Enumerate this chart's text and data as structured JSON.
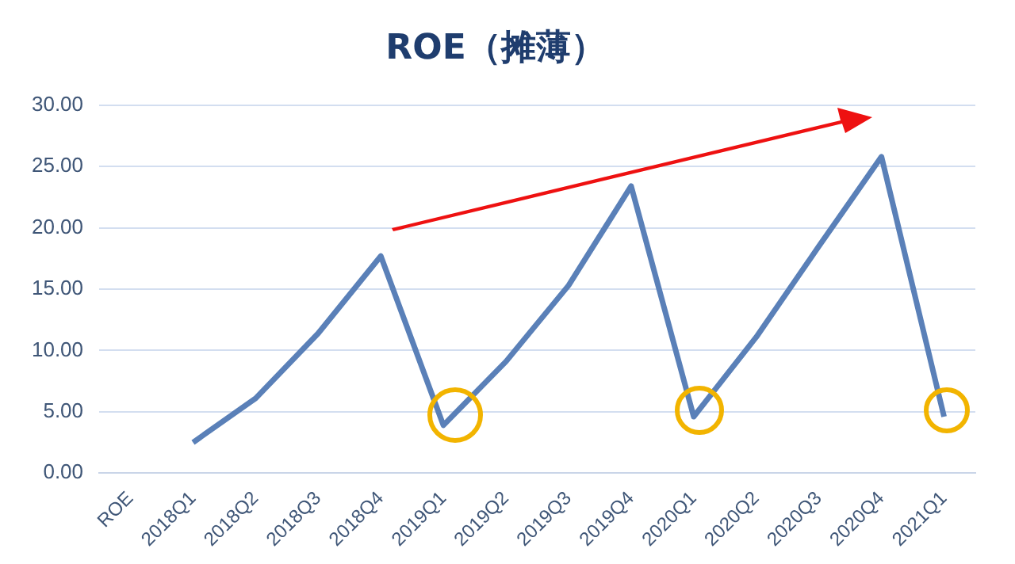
{
  "chart_data": {
    "type": "line",
    "title": "ROE（摊薄）",
    "categories": [
      "ROE",
      "2018Q1",
      "2018Q2",
      "2018Q3",
      "2018Q4",
      "2019Q1",
      "2019Q2",
      "2019Q3",
      "2019Q4",
      "2020Q1",
      "2020Q2",
      "2020Q3",
      "2020Q4",
      "2021Q1"
    ],
    "values": [
      null,
      2.5,
      6.1,
      11.4,
      17.7,
      3.9,
      9.1,
      15.3,
      23.4,
      4.6,
      11.1,
      18.5,
      25.8,
      4.6
    ],
    "color": "#5a80b8",
    "ylim": [
      0,
      30
    ],
    "yticks": [
      {
        "value": 0,
        "label": "0.00"
      },
      {
        "value": 5,
        "label": "5.00"
      },
      {
        "value": 10,
        "label": "10.00"
      },
      {
        "value": 15,
        "label": "15.00"
      },
      {
        "value": 20,
        "label": "20.00"
      },
      {
        "value": 25,
        "label": "25.00"
      },
      {
        "value": 30,
        "label": "30.00"
      }
    ],
    "grid": "y",
    "legend": false,
    "marker": "none",
    "line_style": "solid"
  }
}
